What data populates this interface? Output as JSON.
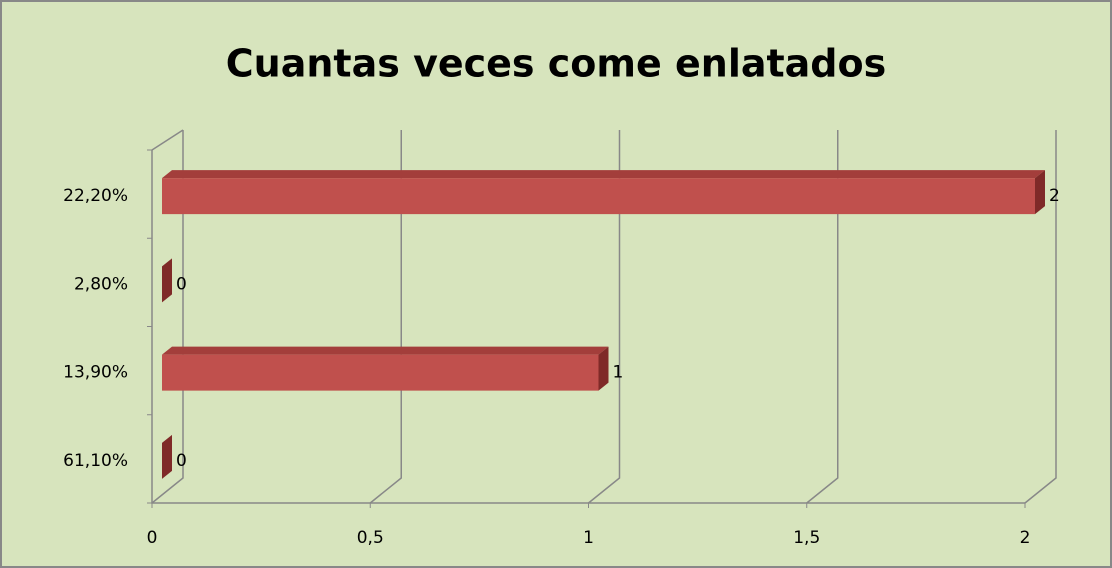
{
  "chart_data": {
    "type": "bar",
    "orientation": "horizontal",
    "title": "Cuantas veces come enlatados",
    "categories": [
      "22,20%",
      "2,80%",
      "13,90%",
      "61,10%"
    ],
    "values": [
      2,
      0,
      1,
      0
    ],
    "color": "#c0504d",
    "xlim": [
      0,
      2
    ],
    "xticks": [
      0,
      {
        "value": 0.5,
        "label": "0,5"
      },
      1,
      {
        "value": 1.5,
        "label": "1,5"
      },
      2
    ],
    "grid": true
  }
}
